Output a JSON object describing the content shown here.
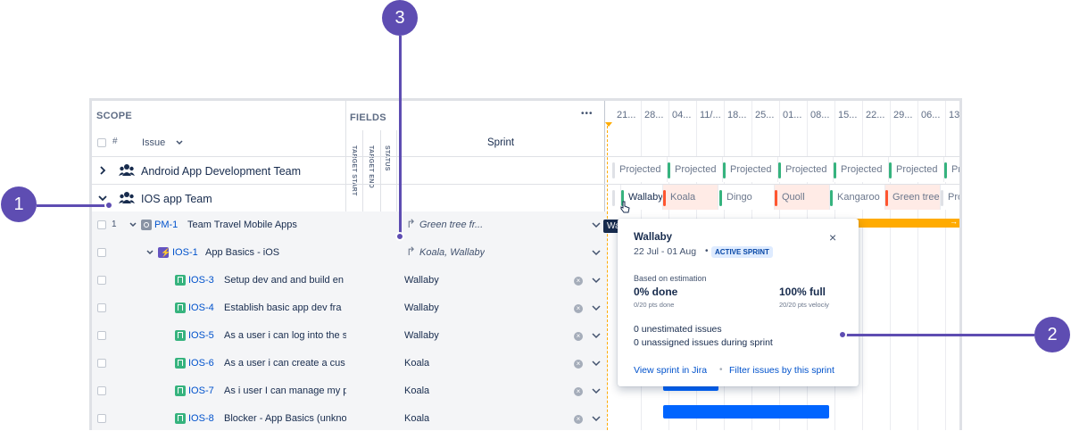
{
  "scope": {
    "header": "SCOPE",
    "hash": "#",
    "issue_label": "Issue"
  },
  "fields": {
    "header": "FIELDS",
    "more": "•••",
    "sprint_col": "Sprint",
    "target_start": "TARGET START",
    "target_end": "TARGET END",
    "status": "STATUS"
  },
  "timeline": {
    "dates": [
      "21...",
      "28...",
      "04...",
      "11/...",
      "18...",
      "25...",
      "01...",
      "08...",
      "15...",
      "22...",
      "29...",
      "06...",
      "13..."
    ]
  },
  "teams": [
    {
      "name": "Android App Development Team",
      "sprints": [
        "Projected",
        "Projected",
        "Projected",
        "Projected",
        "Projected",
        "Projected",
        "Pr"
      ]
    },
    {
      "name": "IOS app Team",
      "sprints": [
        "Wallaby",
        "Koala",
        "Dingo",
        "Quoll",
        "Kangaroo",
        "Green tree",
        "Pro"
      ]
    }
  ],
  "issues": [
    {
      "rank": "1",
      "key": "PM-1",
      "summary": "Team Travel Mobile Apps",
      "sprint": "Green tree fr...",
      "inherited": true
    },
    {
      "rank": "",
      "key": "IOS-1",
      "summary": "App Basics - iOS",
      "sprint": "Koala, Wallaby",
      "inherited": true
    },
    {
      "rank": "",
      "key": "IOS-3",
      "summary": "Setup dev and and build en",
      "sprint": "Wallaby",
      "inherited": false
    },
    {
      "rank": "",
      "key": "IOS-4",
      "summary": "Establish basic app dev fra",
      "sprint": "Wallaby",
      "inherited": false
    },
    {
      "rank": "",
      "key": "IOS-5",
      "summary": "As a user i can log into the s",
      "sprint": "Wallaby",
      "inherited": false
    },
    {
      "rank": "",
      "key": "IOS-6",
      "summary": "As a user i can create a cus",
      "sprint": "Koala",
      "inherited": false
    },
    {
      "rank": "",
      "key": "IOS-7",
      "summary": "As i user I can manage my p",
      "sprint": "Koala",
      "inherited": false
    },
    {
      "rank": "",
      "key": "IOS-8",
      "summary": "Blocker - App Basics (unkno",
      "sprint": "Koala",
      "inherited": false
    }
  ],
  "tooltip": "Wallaby",
  "popup": {
    "title": "Wallaby",
    "dates": "22 Jul - 01 Aug",
    "separator": "•",
    "badge": "ACTIVE SPRINT",
    "based_on": "Based on estimation",
    "done_pct": "0% done",
    "done_pts": "0/20 pts done",
    "full_pct": "100% full",
    "full_pts": "20/20 pts velociy",
    "unestimated": "0 unestimated issues",
    "unassigned": "0 unassigned issues during sprint",
    "view_link": "View sprint in Jira",
    "link_sep": "•",
    "filter_link": "Filter issues by this sprint"
  },
  "callouts": {
    "one": "1",
    "two": "2",
    "three": "3"
  },
  "colors": {
    "accent": "#5e4db2",
    "green": "#36b37e",
    "red": "#ff5630",
    "orange": "#ffab00",
    "blue": "#0065ff",
    "link": "#0052cc"
  }
}
